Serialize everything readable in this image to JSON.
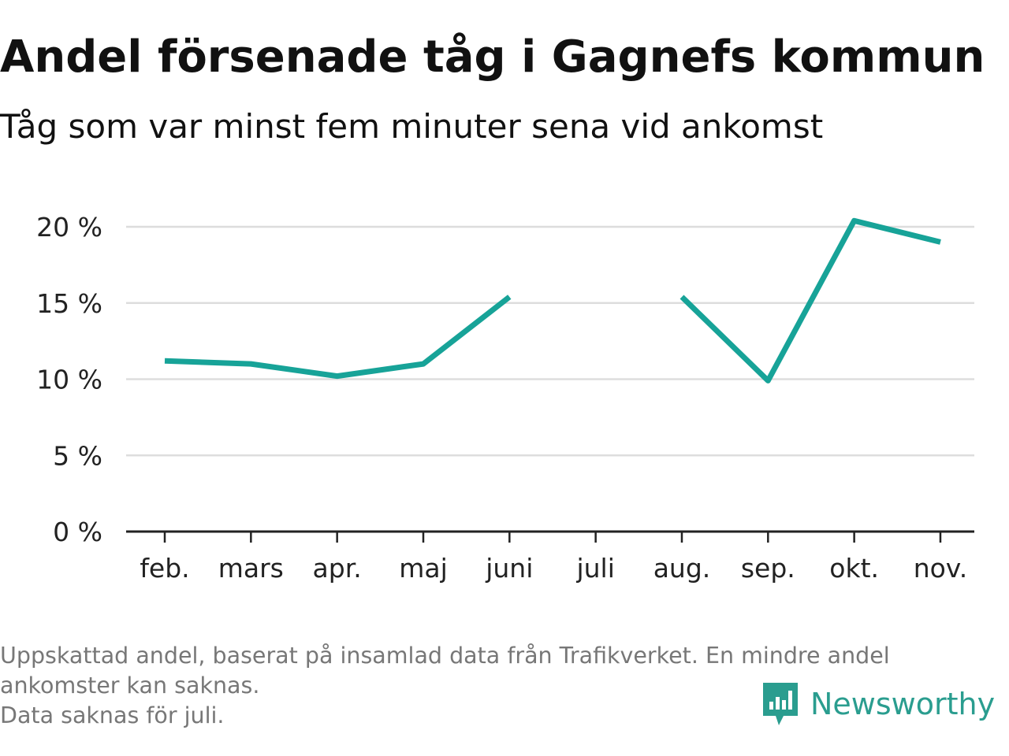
{
  "title": "Andel försenade tåg i Gagnefs kommun",
  "subtitle": "Tåg som var minst fem minuter sena vid ankomst",
  "footnote": {
    "line1": "Uppskattad andel, baserat på insamlad data från Trafikverket. En mindre andel",
    "line2": "ankomster kan saknas.",
    "line3": "Data saknas för juli."
  },
  "brand": {
    "name": "Newsworthy",
    "icon": "newsworthy-logo-icon",
    "color": "#2a9d8f"
  },
  "colors": {
    "line": "#17a398",
    "grid": "#dddddd",
    "axis": "#222222",
    "tick_text": "#222222"
  },
  "chart_data": {
    "type": "line",
    "categories": [
      "feb.",
      "mars",
      "apr.",
      "maj",
      "juni",
      "juli",
      "aug.",
      "sep.",
      "okt.",
      "nov."
    ],
    "series": [
      {
        "values": [
          11.2,
          11.0,
          10.2,
          11.0,
          15.4,
          null,
          15.4,
          9.9,
          20.4,
          19.0
        ]
      }
    ],
    "yticks": [
      0,
      5,
      10,
      15,
      20
    ],
    "ytick_labels": [
      "0 %",
      "5 %",
      "10 %",
      "15 %",
      "20 %"
    ],
    "ylim": [
      0,
      20
    ],
    "grid": true,
    "xlabel": "",
    "ylabel": ""
  }
}
